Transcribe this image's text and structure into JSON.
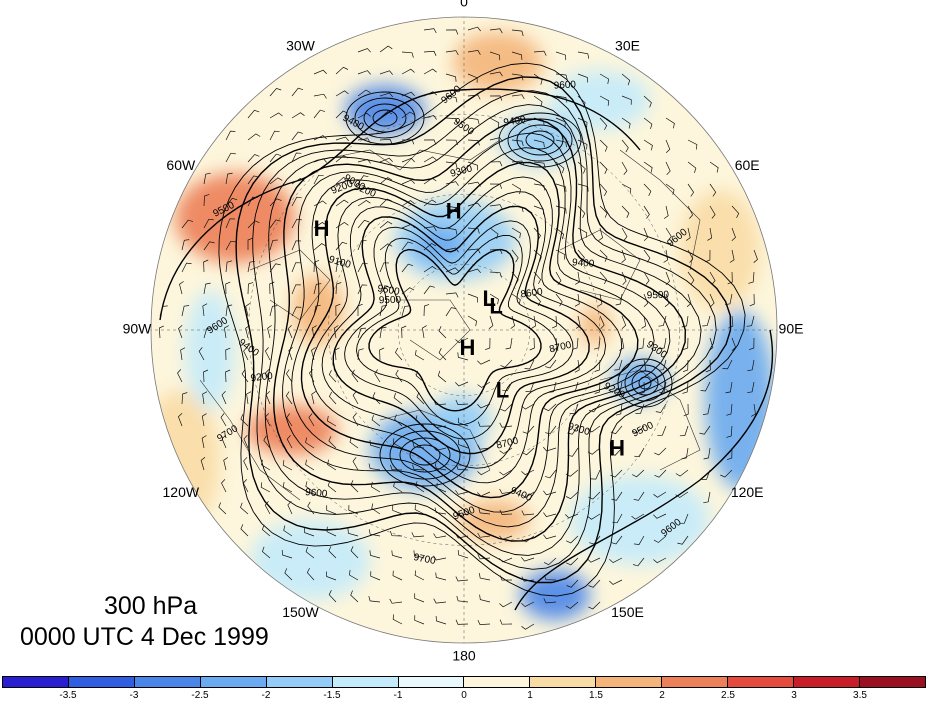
{
  "map": {
    "level_title": "300 hPa",
    "time_title": "0000 UTC 4 Dec 1999",
    "longitude_labels": [
      "0",
      "30W",
      "60W",
      "90W",
      "120W",
      "150W",
      "180",
      "150E",
      "120E",
      "90E",
      "60E",
      "30E"
    ],
    "highs_lows": [
      {
        "type": "H",
        "lat": 55,
        "lon": -5
      },
      {
        "type": "H",
        "lat": 40,
        "lon": -55
      },
      {
        "type": "H",
        "lat": 84,
        "lon": 170
      },
      {
        "type": "H",
        "lat": 35,
        "lon": 128
      },
      {
        "type": "L",
        "lat": 78,
        "lon": 55
      },
      {
        "type": "L",
        "lat": 78,
        "lon": 40
      },
      {
        "type": "L",
        "lat": 68,
        "lon": 148
      }
    ],
    "contour_labels": [
      "9600",
      "9600",
      "9500",
      "9400",
      "9400",
      "9300",
      "9200",
      "9200",
      "9100",
      "9500",
      "9500",
      "9600",
      "9400",
      "9600",
      "9500",
      "9300",
      "8600",
      "9200",
      "8700",
      "9400",
      "9500",
      "9300",
      "9500",
      "9700",
      "9700",
      "9600",
      "9600",
      "9500",
      "9400",
      "9200",
      "9000",
      "8700"
    ],
    "colorbar": {
      "labels": [
        "-3.5",
        "-3",
        "-2.5",
        "-2",
        "-1.5",
        "-1",
        "0",
        "1",
        "1.5",
        "2",
        "2.5",
        "3",
        "3.5"
      ],
      "colors": [
        "#2a1fd0",
        "#2f5fe0",
        "#4a86e8",
        "#6aaaf0",
        "#93cdf7",
        "#c4ebfb",
        "#e8f8fd",
        "#fdf6dc",
        "#f9dca5",
        "#f4b57a",
        "#ec8058",
        "#e44b3d",
        "#c81d28",
        "#9a1020"
      ]
    }
  }
}
